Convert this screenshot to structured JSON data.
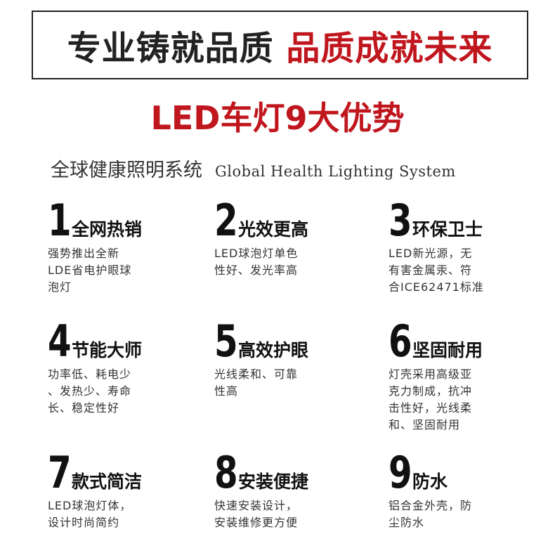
{
  "header": {
    "title_parts": [
      "专业铸就品质",
      "品质成就未来"
    ]
  },
  "title": "LED车灯9大优势",
  "subtitle": {
    "cn": "全球健康照明系统",
    "en": "Global Health Lighting System"
  },
  "features": [
    {
      "number": 1,
      "name": "全网热销",
      "lines": [
        "强势推出全新",
        "LDE省电护眼球",
        "泡灯"
      ]
    },
    {
      "number": 2,
      "name": "光效更高",
      "lines": [
        "LED球泡灯单色",
        "性好、发光率高"
      ]
    },
    {
      "number": 3,
      "name": "环保卫士",
      "lines": [
        "LED新光源，无",
        "有害金属汞、符",
        "合ICE62471标准"
      ]
    },
    {
      "number": 4,
      "name": "节能大师",
      "lines": [
        "功率低、耗电少",
        "、发热少、寿命",
        "长、稳定性好"
      ]
    },
    {
      "number": 5,
      "name": "高效护眼",
      "lines": [
        "光线柔和、可靠",
        "性高"
      ]
    },
    {
      "number": 6,
      "name": "坚固耐用",
      "lines": [
        "灯壳采用高级亚",
        "克力制成，抗冲",
        "击性好，光线柔",
        "和、坚固耐用"
      ]
    },
    {
      "number": 7,
      "name": "款式简洁",
      "lines": [
        "LED球泡灯体，",
        "设计时尚简约"
      ]
    },
    {
      "number": 8,
      "name": "安装便捷",
      "lines": [
        "快速安装设计，",
        "安装维修更方便"
      ]
    },
    {
      "number": 9,
      "name": "防水",
      "lines": [
        "铝合金外壳，防",
        "尘防水"
      ]
    }
  ]
}
